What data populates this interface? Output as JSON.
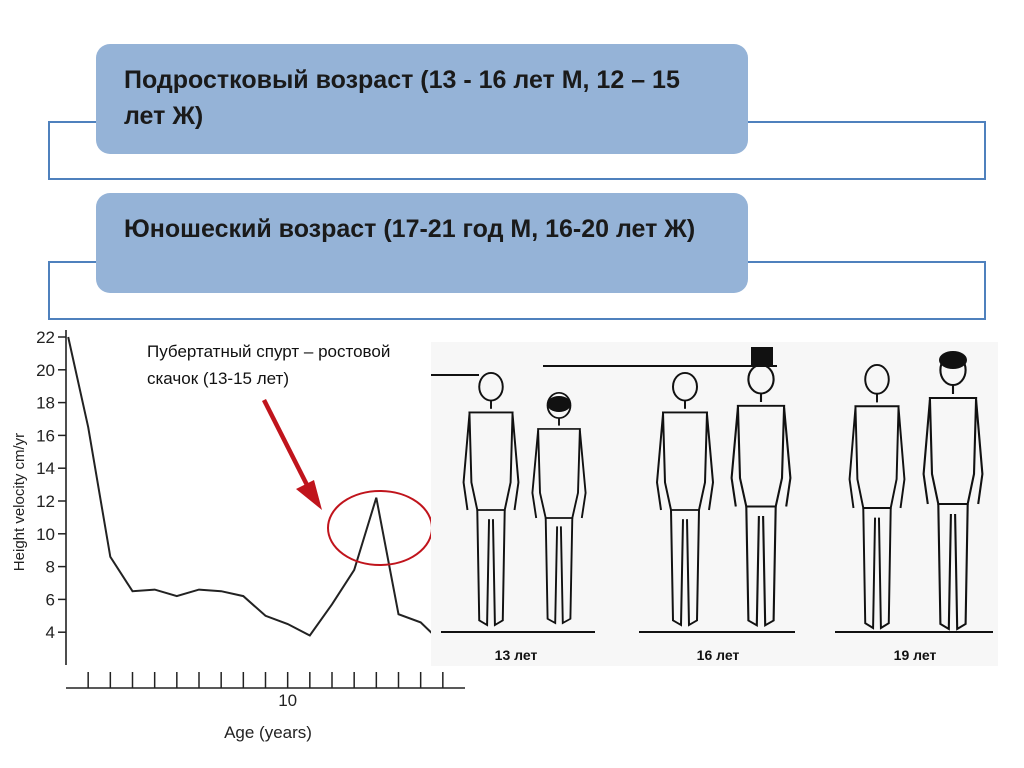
{
  "slide": {
    "box1_text": "Подростковый возраст (13 - 16 лет М, 12 – 15 лет Ж)",
    "box2_text": "Юношеский возраст (17-21 год М, 16-20 лет Ж)",
    "callout_text": "Пубертатный спурт – ростовой скачок (13-15 лет)"
  },
  "figures": {
    "captions": [
      "13 лет",
      "16 лет",
      "19 лет"
    ]
  },
  "colors": {
    "box_fill": "#95b3d7",
    "box_outline": "#4f81bd",
    "arrow": "#c0141c",
    "highlight": "#c0141c"
  },
  "chart_data": {
    "type": "line",
    "xlabel": "Age (years)",
    "ylabel": "Height velocity cm/yr",
    "xlim": [
      0,
      18
    ],
    "ylim": [
      2,
      22
    ],
    "x_tick_labels": [
      {
        "x": 10,
        "label": "10"
      }
    ],
    "yticks": [
      4,
      6,
      8,
      10,
      12,
      14,
      16,
      18,
      20,
      22
    ],
    "series": [
      {
        "x": [
          0.1,
          1,
          2,
          3,
          4,
          5,
          6,
          7,
          8,
          9,
          10,
          11,
          12,
          13,
          14,
          15,
          16,
          17
        ],
        "y": [
          22,
          16.5,
          8.6,
          6.5,
          6.6,
          6.2,
          6.6,
          6.5,
          6.2,
          5.0,
          4.5,
          3.8,
          5.7,
          7.8,
          12.2,
          5.1,
          4.6,
          3.3
        ]
      }
    ]
  }
}
